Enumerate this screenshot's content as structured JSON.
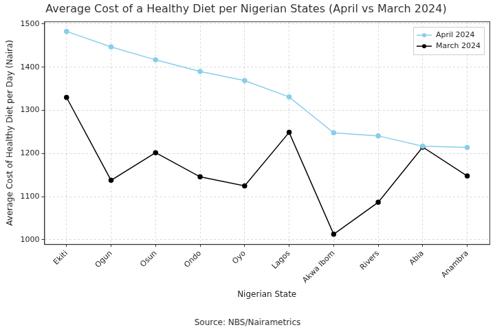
{
  "chart_data": {
    "type": "line",
    "title": "Average Cost of a Healthy Diet per Nigerian States (April vs March 2024)",
    "x_label": "Nigerian State",
    "y_label": "Average Cost of Healthy Diet per Day (Naira)",
    "annotations": [
      "Source: NBS/Nairametrics"
    ],
    "categories": [
      "Ekiti",
      "Ogun",
      "Osun",
      "Ondo",
      "Oyo",
      "Lagos",
      "Akwa Ibom",
      "Rivers",
      "Abia",
      "Anambra"
    ],
    "series": [
      {
        "name": "April 2024",
        "color": "#87ceeb",
        "marker": "circle",
        "line_style": "solid",
        "values": [
          1483,
          1447,
          1417,
          1390,
          1369,
          1331,
          1248,
          1241,
          1217,
          1214
        ]
      },
      {
        "name": "March 2024",
        "color": "#000000",
        "marker": "circle",
        "line_style": "solid",
        "values": [
          1330,
          1138,
          1202,
          1146,
          1125,
          1249,
          1013,
          1087,
          1215,
          1148
        ]
      }
    ],
    "ylim": [
      990,
      1506
    ],
    "yticks": [
      1000,
      1100,
      1200,
      1300,
      1400,
      1500
    ],
    "grid": true,
    "legend": "upper right"
  }
}
